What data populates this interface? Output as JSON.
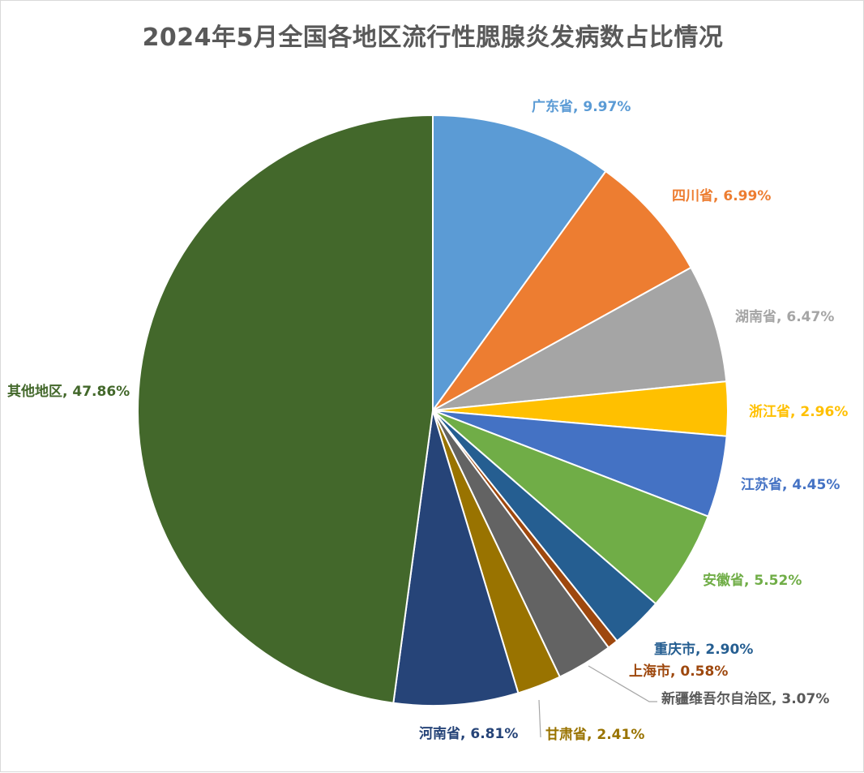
{
  "chart_data": {
    "type": "pie",
    "title": "2024年5月全国各地区流行性腮腺炎发病数占比情况",
    "slices": [
      {
        "label": "广东省",
        "value": 9.97,
        "text": "9.97%",
        "color": "#5B9BD5",
        "label_color": "#5B9BD5"
      },
      {
        "label": "四川省",
        "value": 6.99,
        "text": "6.99%",
        "color": "#ED7D31",
        "label_color": "#ED7D31"
      },
      {
        "label": "湖南省",
        "value": 6.47,
        "text": "6.47%",
        "color": "#A5A5A5",
        "label_color": "#A5A5A5"
      },
      {
        "label": "浙江省",
        "value": 2.96,
        "text": "2.96%",
        "color": "#FFC000",
        "label_color": "#FFC000"
      },
      {
        "label": "江苏省",
        "value": 4.45,
        "text": "4.45%",
        "color": "#4472C4",
        "label_color": "#4472C4"
      },
      {
        "label": "安徽省",
        "value": 5.52,
        "text": "5.52%",
        "color": "#70AD47",
        "label_color": "#70AD47"
      },
      {
        "label": "重庆市",
        "value": 2.9,
        "text": "2.90%",
        "color": "#255E91",
        "label_color": "#255E91"
      },
      {
        "label": "上海市",
        "value": 0.58,
        "text": "0.58%",
        "color": "#9E480E",
        "label_color": "#9E480E"
      },
      {
        "label": "新疆维吾尔自治区",
        "value": 3.07,
        "text": "3.07%",
        "color": "#636363",
        "label_color": "#595959"
      },
      {
        "label": "甘肃省",
        "value": 2.41,
        "text": "2.41%",
        "color": "#997300",
        "label_color": "#997300"
      },
      {
        "label": "河南省",
        "value": 6.81,
        "text": "6.81%",
        "color": "#264478",
        "label_color": "#264478"
      },
      {
        "label": "其他地区",
        "value": 47.86,
        "text": "47.86%",
        "color": "#43682B",
        "label_color": "#43682B"
      }
    ],
    "label_format": "{label}, {text}",
    "legend": "none",
    "start_angle": "12 o'clock",
    "direction": "clockwise"
  }
}
